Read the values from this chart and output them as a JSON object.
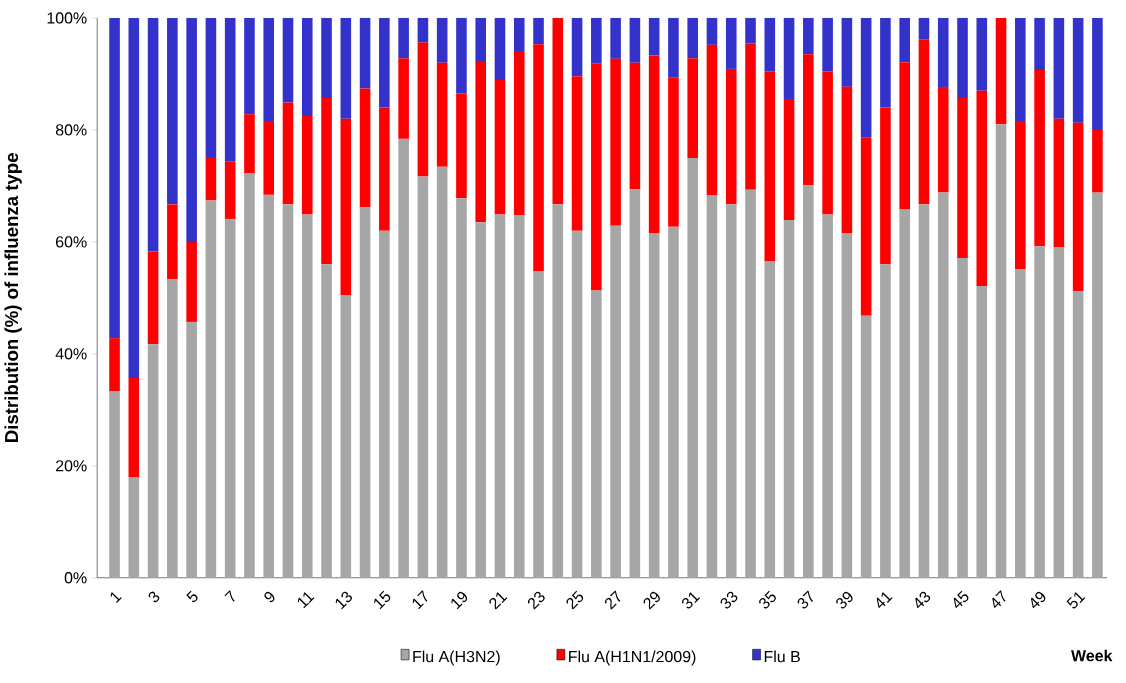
{
  "chart_data": {
    "type": "bar",
    "stacked": true,
    "xlabel": "Week",
    "ylabel": "Distribution (%) of influenza type",
    "categories": [
      "1",
      null,
      "3",
      null,
      "5",
      null,
      "7",
      null,
      "9",
      null,
      "11",
      null,
      "13",
      null,
      "15",
      null,
      "17",
      null,
      "19",
      null,
      "21",
      null,
      "23",
      null,
      "25",
      null,
      "27",
      null,
      "29",
      null,
      "31",
      null,
      "33",
      null,
      "35",
      null,
      "37",
      null,
      "39",
      null,
      "41",
      null,
      "43",
      null,
      "45",
      null,
      "47",
      null,
      "49",
      null,
      "51",
      null
    ],
    "series": [
      {
        "name": "Flu A(H3N2)",
        "color": "#a6a6a6",
        "values": [
          33.3,
          17.9,
          41.7,
          53.3,
          45.7,
          67.4,
          64.1,
          72.3,
          68.4,
          66.7,
          64.9,
          56.0,
          50.5,
          66.2,
          62.0,
          78.4,
          71.7,
          73.4,
          67.8,
          63.5,
          64.9,
          64.7,
          54.7,
          66.7,
          62.0,
          51.3,
          62.9,
          69.4,
          61.6,
          62.7,
          75.0,
          68.3,
          66.7,
          69.3,
          56.6,
          63.9,
          70.1,
          64.9,
          61.6,
          46.8,
          56.0,
          65.8,
          66.7,
          68.8,
          57.1,
          52.1,
          81.0,
          55.1,
          59.2,
          59.0,
          51.2,
          68.8
        ]
      },
      {
        "name": "Flu A(H1N1/2009)",
        "color": "#ff0000",
        "values": [
          9.5,
          17.8,
          16.6,
          13.4,
          14.3,
          7.6,
          10.3,
          10.5,
          13.2,
          18.2,
          17.6,
          29.7,
          31.5,
          21.2,
          22.0,
          14.4,
          23.9,
          18.6,
          18.7,
          28.8,
          24.0,
          29.4,
          40.6,
          33.3,
          27.6,
          40.6,
          29.8,
          22.6,
          31.7,
          26.7,
          17.8,
          26.9,
          24.2,
          26.2,
          33.9,
          21.6,
          23.4,
          25.6,
          26.1,
          31.9,
          28.0,
          26.3,
          29.5,
          18.7,
          28.6,
          34.9,
          19.0,
          26.5,
          31.5,
          23.0,
          30.1,
          11.2
        ]
      },
      {
        "name": "Flu B",
        "color": "#3333cc",
        "values": [
          57.2,
          64.3,
          41.7,
          33.3,
          40.0,
          25.0,
          25.6,
          17.2,
          18.4,
          15.1,
          17.5,
          14.3,
          18.0,
          12.6,
          16.0,
          7.2,
          4.4,
          8.0,
          13.5,
          7.7,
          11.1,
          5.9,
          4.7,
          0,
          10.4,
          8.1,
          7.3,
          8.0,
          6.7,
          10.6,
          7.2,
          4.8,
          9.1,
          4.5,
          9.5,
          14.5,
          6.5,
          9.5,
          12.3,
          21.3,
          16.0,
          7.9,
          3.8,
          12.5,
          14.3,
          13.0,
          0,
          18.4,
          9.3,
          18.0,
          18.7,
          20.0
        ]
      }
    ],
    "ylim": [
      0,
      100
    ],
    "yticks": [
      {
        "value": 0,
        "label": "0%"
      },
      {
        "value": 20,
        "label": "20%"
      },
      {
        "value": 40,
        "label": "40%"
      },
      {
        "value": 60,
        "label": "60%"
      },
      {
        "value": 80,
        "label": "80%"
      },
      {
        "value": 100,
        "label": "100%"
      }
    ],
    "legend": "bottom",
    "grid": false
  }
}
